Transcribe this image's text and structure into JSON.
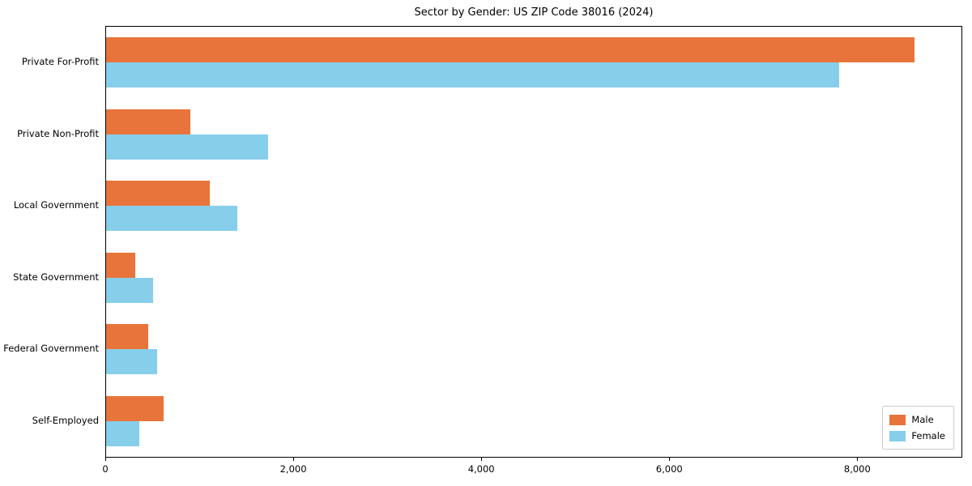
{
  "title": "Sector by Gender: US ZIP Code 38016 (2024)",
  "chart_data": {
    "type": "bar",
    "orientation": "horizontal",
    "title": "Sector by Gender: US ZIP Code 38016 (2024)",
    "xlabel": "",
    "ylabel": "",
    "categories": [
      "Private For-Profit",
      "Private Non-Profit",
      "Local Government",
      "State Government",
      "Federal Government",
      "Self-Employed"
    ],
    "series": [
      {
        "name": "Male",
        "color": "#E8743B",
        "values": [
          8600,
          900,
          1100,
          310,
          450,
          610
        ]
      },
      {
        "name": "Female",
        "color": "#87CEEB",
        "values": [
          7800,
          1720,
          1400,
          500,
          540,
          350
        ]
      }
    ],
    "xlim": [
      0,
      9100
    ],
    "x_ticks": [
      0,
      2000,
      4000,
      6000,
      8000
    ],
    "x_tick_labels": [
      "0",
      "2,000",
      "4,000",
      "6,000",
      "8,000"
    ],
    "grid": false,
    "legend_position": "lower right"
  }
}
